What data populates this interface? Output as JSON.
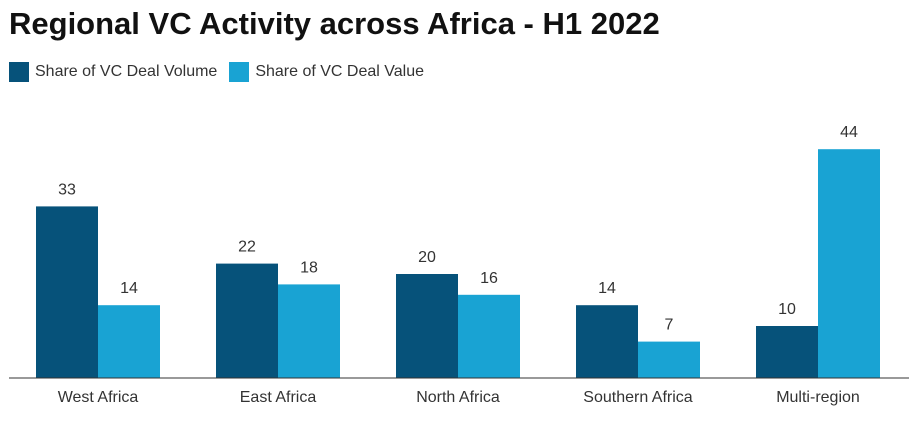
{
  "title": "Regional VC Activity across Africa - H1 2022",
  "colors": {
    "volume": "#06527a",
    "value": "#19a3d3",
    "axis": "#333333"
  },
  "chart_data": {
    "type": "bar",
    "title": "Regional VC Activity across Africa - H1 2022",
    "categories": [
      "West Africa",
      "East Africa",
      "North Africa",
      "Southern Africa",
      "Multi-region"
    ],
    "series": [
      {
        "name": "Share of VC Deal Volume",
        "values": [
          33,
          22,
          20,
          14,
          10
        ]
      },
      {
        "name": "Share of VC Deal Value",
        "values": [
          14,
          18,
          16,
          7,
          44
        ]
      }
    ],
    "xlabel": "",
    "ylabel": "",
    "ylim": [
      0,
      44
    ],
    "grid": false,
    "legend": "top-left"
  }
}
